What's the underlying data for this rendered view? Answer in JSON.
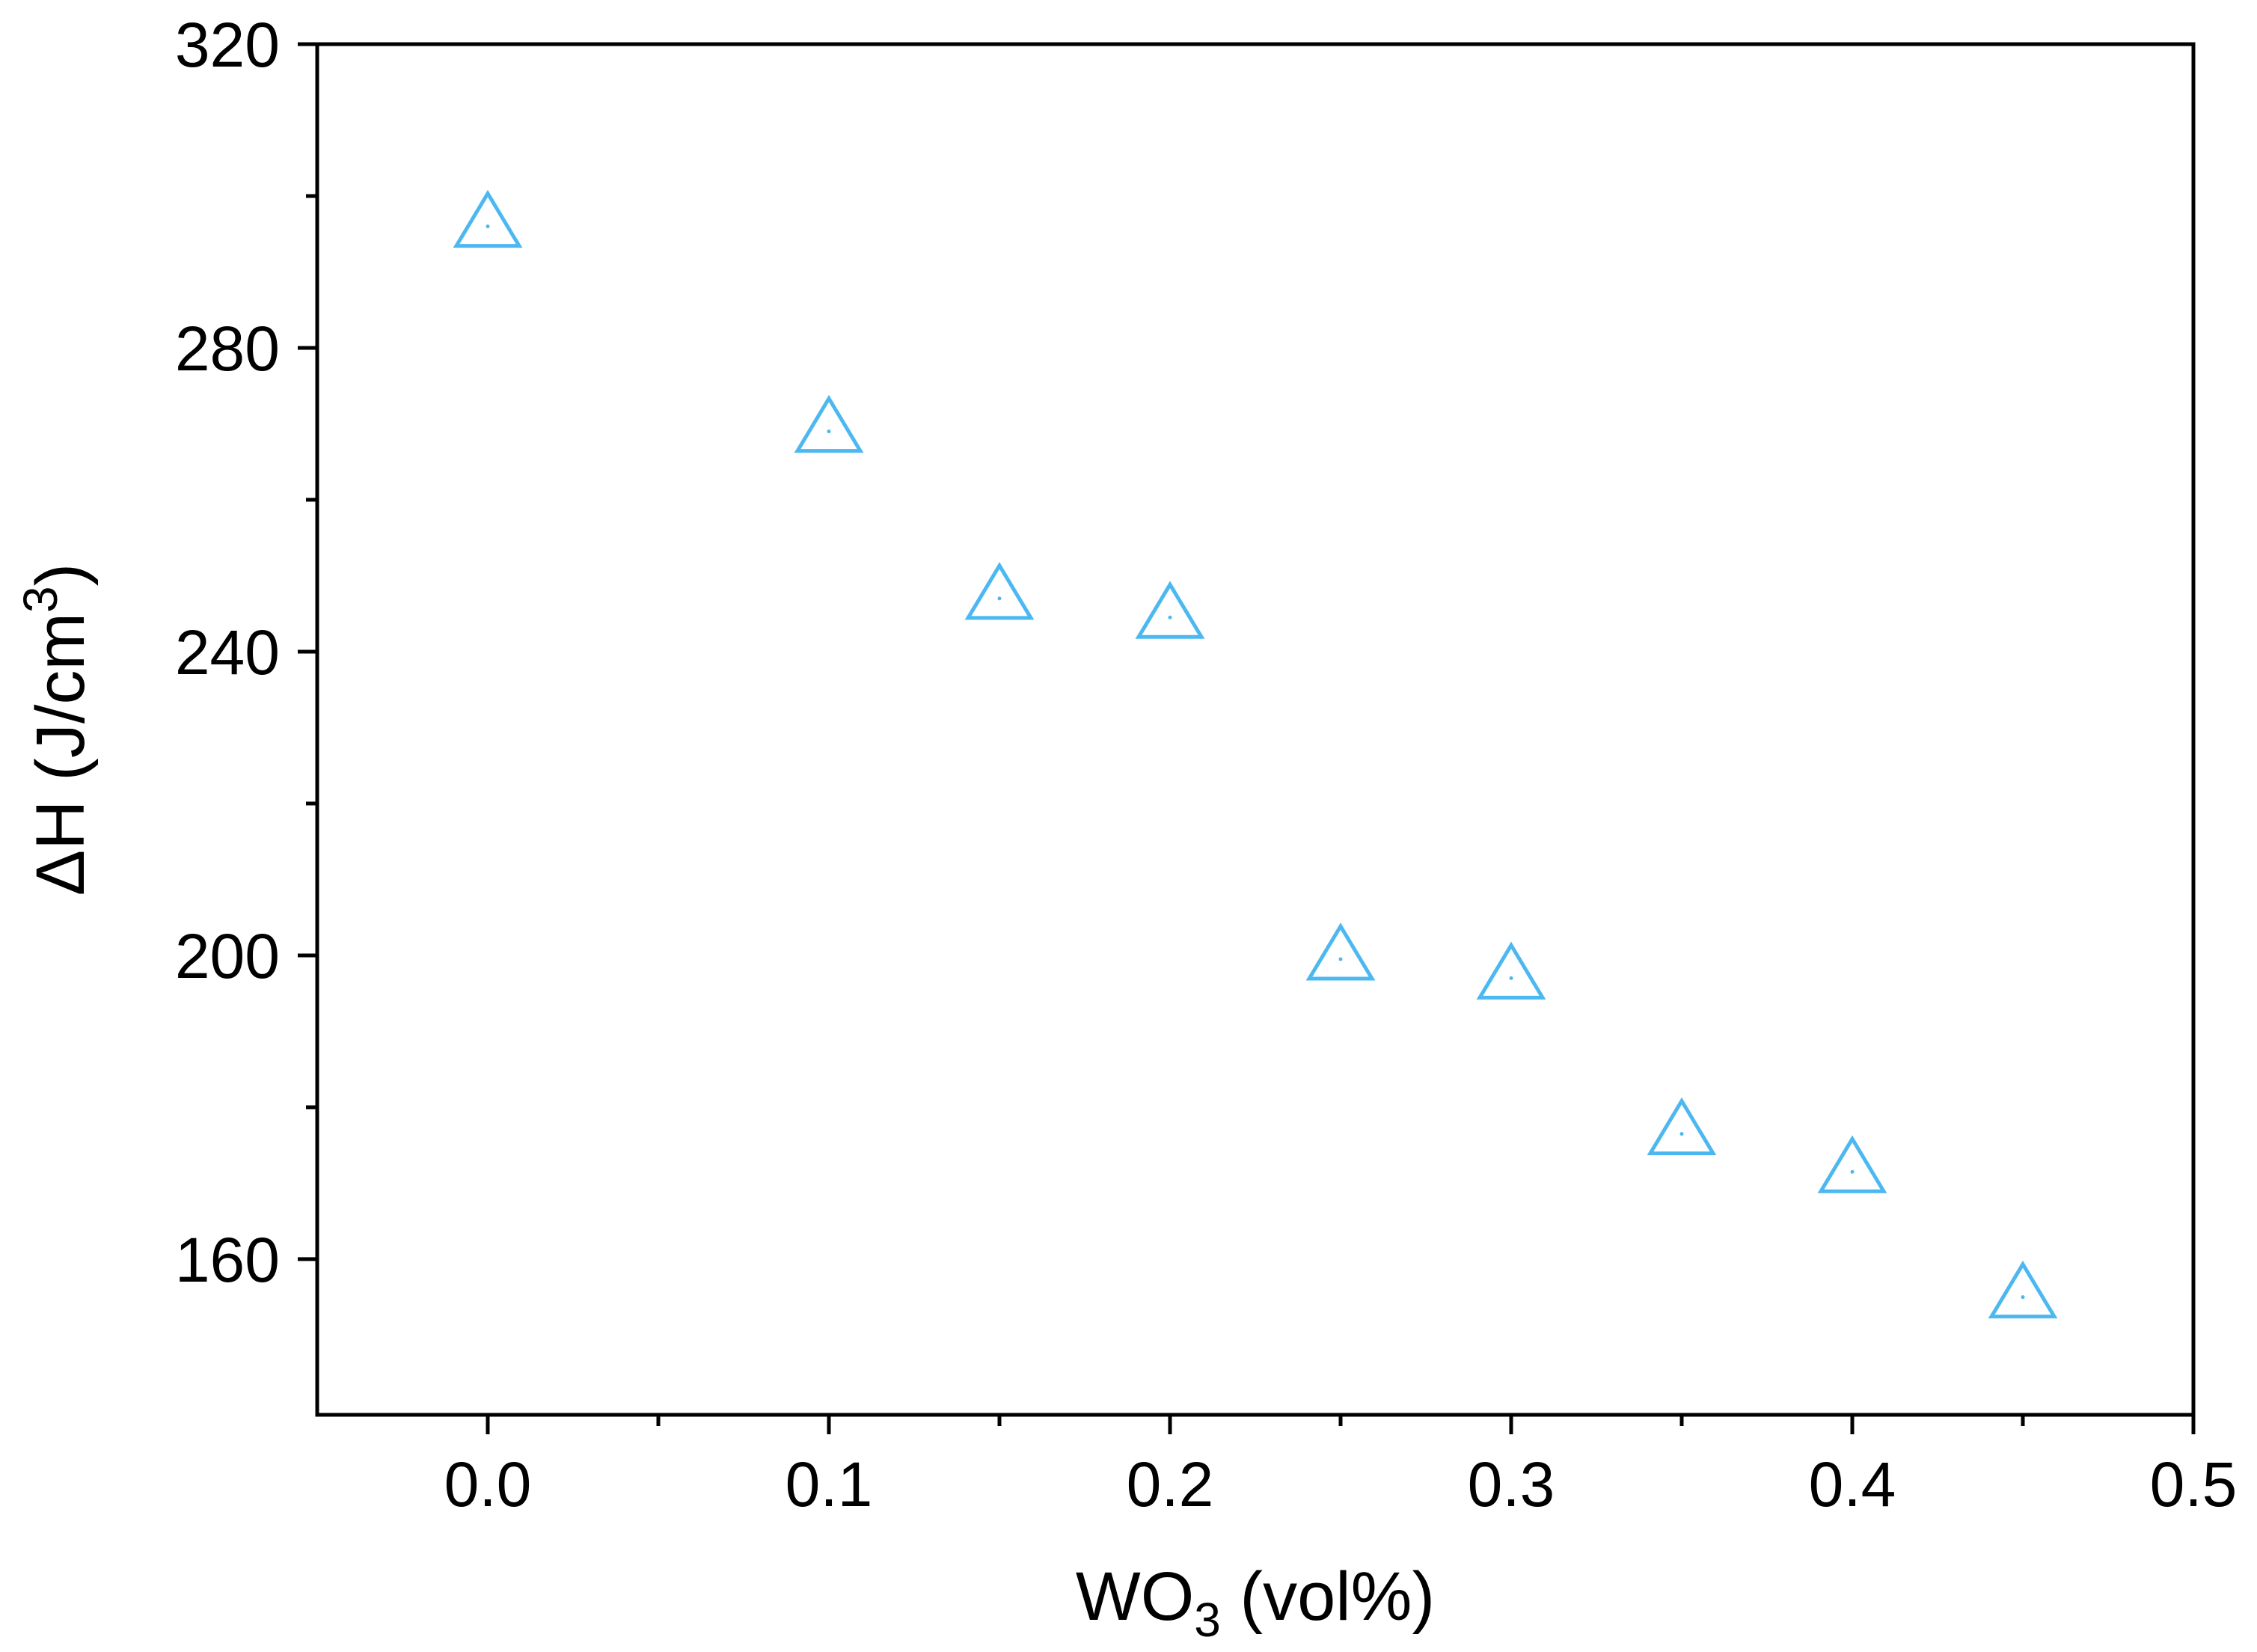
{
  "chart_data": {
    "type": "scatter",
    "title": "",
    "xlabel": "WO3 (vol%)",
    "ylabel": "ΔH (J/cm3)",
    "x_ticks": [
      "0.0",
      "0.1",
      "0.2",
      "0.3",
      "0.4",
      "0.5"
    ],
    "y_ticks": [
      "160",
      "200",
      "240",
      "280",
      "320"
    ],
    "xlim": [
      -0.05,
      0.5
    ],
    "ylim": [
      139.5,
      320
    ],
    "grid": false,
    "series": [
      {
        "marker": "open-triangle-icon",
        "color": "#4db8f0",
        "points": [
          {
            "x": 0.0,
            "y": 296
          },
          {
            "x": 0.1,
            "y": 269
          },
          {
            "x": 0.15,
            "y": 247
          },
          {
            "x": 0.2,
            "y": 244.5
          },
          {
            "x": 0.25,
            "y": 199.5
          },
          {
            "x": 0.3,
            "y": 197
          },
          {
            "x": 0.35,
            "y": 176.5
          },
          {
            "x": 0.4,
            "y": 171.5
          },
          {
            "x": 0.45,
            "y": 155
          }
        ]
      }
    ]
  }
}
